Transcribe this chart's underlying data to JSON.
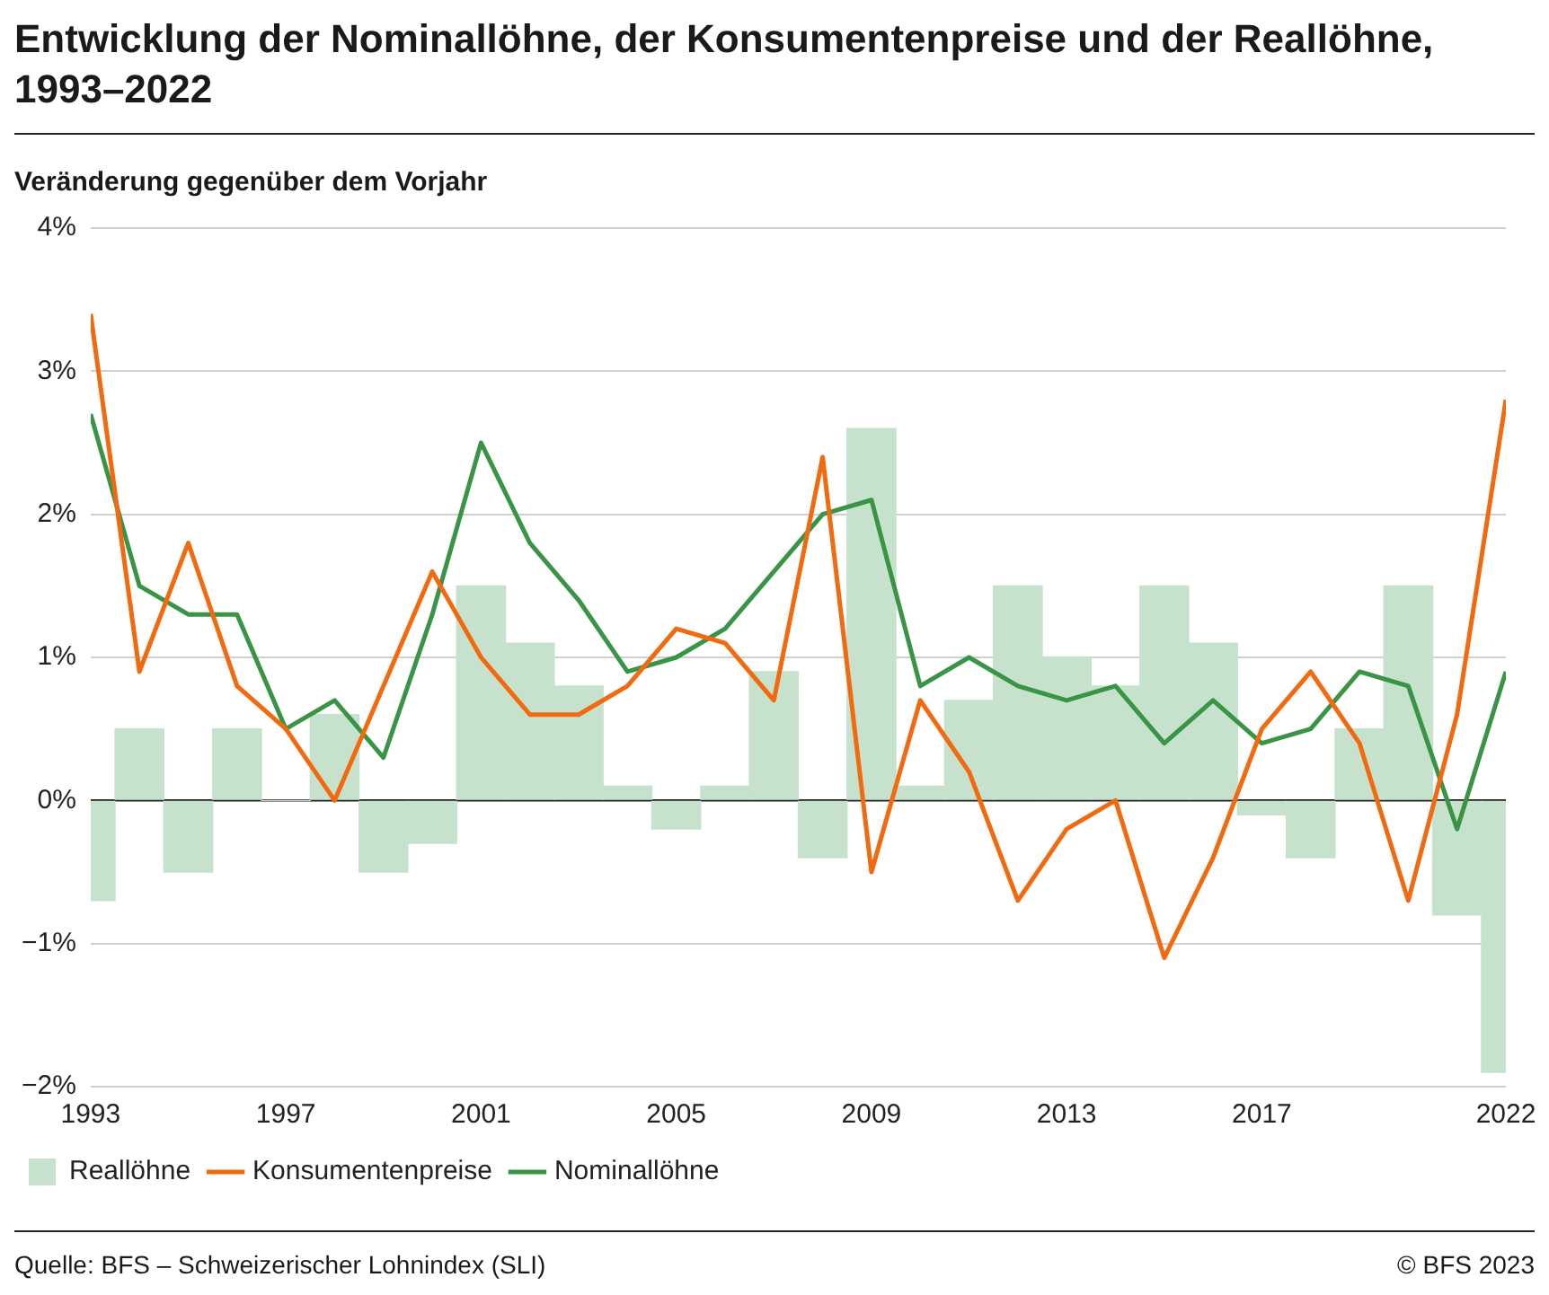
{
  "chart_data": {
    "type": "line",
    "title": "Entwicklung der Nominallöhne, der Konsumentenpreise und der Reallöhne, 1993–2022",
    "ylabel": "Veränderung gegenüber dem Vorjahr",
    "x": [
      1993,
      1994,
      1995,
      1996,
      1997,
      1998,
      1999,
      2000,
      2001,
      2002,
      2003,
      2004,
      2005,
      2006,
      2007,
      2008,
      2009,
      2010,
      2011,
      2012,
      2013,
      2014,
      2015,
      2016,
      2017,
      2018,
      2019,
      2020,
      2021,
      2022
    ],
    "series": [
      {
        "name": "Reallöhne",
        "type": "bar",
        "color": "#c6e2cc",
        "values": [
          -0.7,
          0.5,
          -0.5,
          0.5,
          0,
          0.6,
          -0.5,
          -0.3,
          1.5,
          1.1,
          0.8,
          0.1,
          -0.2,
          0.1,
          0.9,
          -0.4,
          2.6,
          0.1,
          0.7,
          1.5,
          1.0,
          0.8,
          1.5,
          1.1,
          -0.1,
          -0.4,
          0.5,
          1.5,
          -0.8,
          -1.9
        ]
      },
      {
        "name": "Konsumentenpreise",
        "color": "#f26a0f",
        "values": [
          3.4,
          0.9,
          1.8,
          0.8,
          0.5,
          0.0,
          0.8,
          1.6,
          1.0,
          0.6,
          0.6,
          0.8,
          1.2,
          1.1,
          0.7,
          2.4,
          -0.5,
          0.7,
          0.2,
          -0.7,
          -0.2,
          0.0,
          -1.1,
          -0.4,
          0.5,
          0.9,
          0.4,
          -0.7,
          0.6,
          2.8
        ]
      },
      {
        "name": "Nominallöhne",
        "color": "#3a9446",
        "values": [
          2.7,
          1.5,
          1.3,
          1.3,
          0.5,
          0.7,
          0.3,
          1.3,
          2.5,
          1.8,
          1.4,
          0.9,
          1.0,
          1.2,
          1.6,
          2.0,
          2.1,
          0.8,
          1.0,
          0.8,
          0.7,
          0.8,
          0.4,
          0.7,
          0.4,
          0.5,
          0.9,
          0.8,
          -0.2,
          0.9
        ]
      }
    ],
    "xlim": [
      1993,
      2022
    ],
    "xticks": [
      1993,
      1997,
      2001,
      2005,
      2009,
      2013,
      2017,
      2022
    ],
    "ylim": [
      -2,
      4
    ],
    "yticks": [
      {
        "value": -2,
        "label": "−2%"
      },
      {
        "value": -1,
        "label": "−1%"
      },
      {
        "value": 0,
        "label": "0%"
      },
      {
        "value": 1,
        "label": "1%"
      },
      {
        "value": 2,
        "label": "2%"
      },
      {
        "value": 3,
        "label": "3%"
      },
      {
        "value": 4,
        "label": "4%"
      }
    ],
    "grid": "y",
    "legend": "bottom left",
    "marker": "none",
    "line_style": "solid",
    "annotations": [
      "Quelle: BFS – Schweizerischer Lohnindex (SLI)",
      "© BFS 2023"
    ]
  }
}
